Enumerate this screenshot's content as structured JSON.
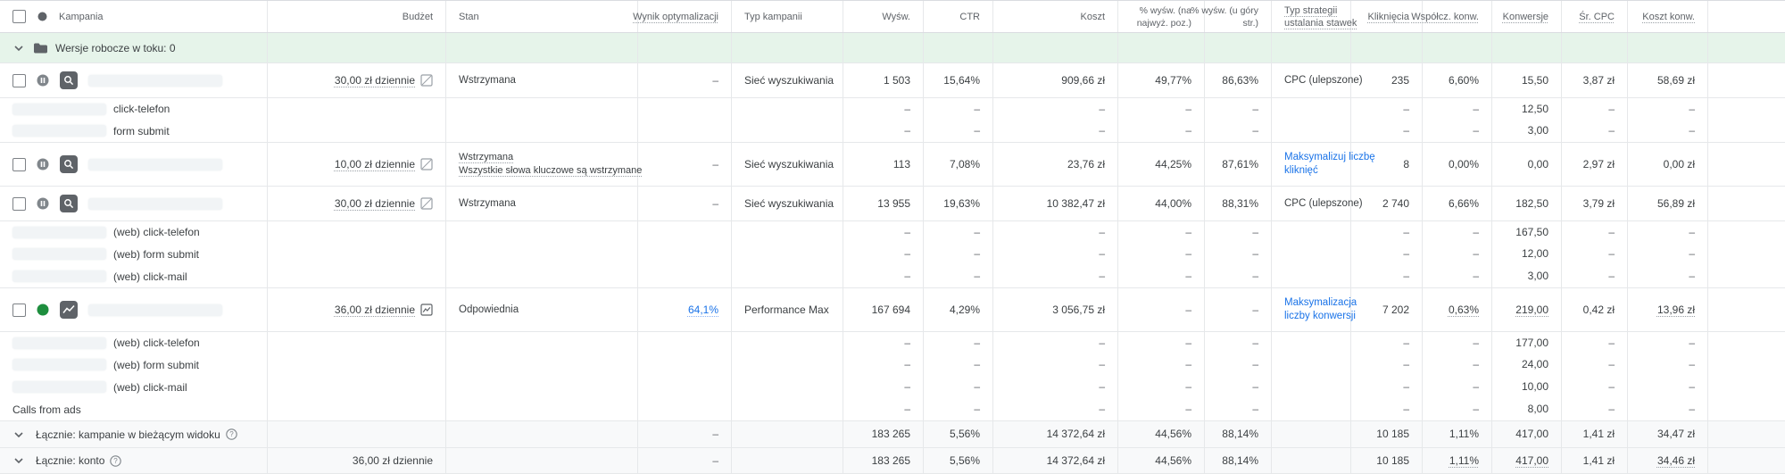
{
  "table": {
    "dash": "–",
    "columns": [
      {
        "id": "campaign",
        "label": "Kampania"
      },
      {
        "id": "budget",
        "label": "Budżet"
      },
      {
        "id": "stan",
        "label": "Stan"
      },
      {
        "id": "opt",
        "label": "Wynik optymalizacji",
        "dotted": true
      },
      {
        "id": "ctype",
        "label": "Typ kampanii"
      },
      {
        "id": "impr",
        "label": "Wyśw."
      },
      {
        "id": "ctr",
        "label": "CTR"
      },
      {
        "id": "cost",
        "label": "Koszt"
      },
      {
        "id": "top",
        "label": "% wyśw. (na\nnajwyż. poz.)"
      },
      {
        "id": "abs",
        "label": "% wyśw. (u góry\nstr.)"
      },
      {
        "id": "strat",
        "label": "Typ strategii\nustalania stawek",
        "dotted": true
      },
      {
        "id": "clicks",
        "label": "Kliknięcia",
        "dotted": true
      },
      {
        "id": "rate",
        "label": "Współcz. konw.",
        "dotted": true
      },
      {
        "id": "conv",
        "label": "Konwersje",
        "dotted": true
      },
      {
        "id": "cpc",
        "label": "Śr. CPC",
        "dotted": true
      },
      {
        "id": "costconv",
        "label": "Koszt konw.",
        "dotted": true
      }
    ],
    "rows": [
      {
        "type": "drafts",
        "label": "Wersje robocze w toku: 0"
      },
      {
        "type": "campaign",
        "status": "paused",
        "camp_icon": "search",
        "budget": "30,00 zł dziennie",
        "budget_dotted": true,
        "budget_icon": "crossed",
        "stan": "Wstrzymana",
        "opt": "–",
        "ctype": "Sieć wyszukiwania",
        "impr": "1 503",
        "ctr": "15,64%",
        "cost": "909,66 zł",
        "top": "49,77%",
        "abs": "86,63%",
        "strat": "CPC (ulepszone)",
        "clicks": "235",
        "rate": "6,60%",
        "conv": "15,50",
        "cpc": "3,87 zł",
        "costconv": "58,69 zł"
      },
      {
        "type": "conversion",
        "blur": true,
        "label": "click-telefon",
        "conv": "12,50"
      },
      {
        "type": "conversion",
        "blur": true,
        "label": "form submit",
        "conv": "3,00"
      },
      {
        "type": "campaign",
        "status": "paused",
        "camp_icon": "search",
        "budget": "10,00 zł dziennie",
        "budget_dotted": true,
        "budget_icon": "crossed",
        "stan": "Wstrzymana\nWszystkie słowa kluczowe są wstrzymane",
        "stan_dotted": true,
        "opt": "–",
        "ctype": "Sieć wyszukiwania",
        "impr": "113",
        "ctr": "7,08%",
        "cost": "23,76 zł",
        "top": "44,25%",
        "abs": "87,61%",
        "strat": "Maksymalizuj liczbę\nkliknięć",
        "strat_blue": true,
        "clicks": "8",
        "rate": "0,00%",
        "conv": "0,00",
        "cpc": "2,97 zł",
        "costconv": "0,00 zł"
      },
      {
        "type": "campaign",
        "status": "paused",
        "camp_icon": "search",
        "budget": "30,00 zł dziennie",
        "budget_dotted": true,
        "budget_icon": "crossed",
        "stan": "Wstrzymana",
        "opt": "–",
        "ctype": "Sieć wyszukiwania",
        "impr": "13 955",
        "ctr": "19,63%",
        "cost": "10 382,47 zł",
        "top": "44,00%",
        "abs": "88,31%",
        "strat": "CPC (ulepszone)",
        "clicks": "2 740",
        "rate": "6,66%",
        "conv": "182,50",
        "cpc": "3,79 zł",
        "costconv": "56,89 zł"
      },
      {
        "type": "conversion",
        "blur": true,
        "label": "(web) click-telefon",
        "conv": "167,50"
      },
      {
        "type": "conversion",
        "blur": true,
        "label": "(web) form submit",
        "conv": "12,00"
      },
      {
        "type": "conversion",
        "blur": true,
        "label": "(web) click-mail",
        "conv": "3,00"
      },
      {
        "type": "campaign",
        "status": "enabled",
        "camp_icon": "pmax",
        "budget": "36,00 zł dziennie",
        "budget_dotted": true,
        "budget_icon": "chart",
        "stan": "Odpowiednia",
        "opt": "64,1%",
        "opt_blue": true,
        "ctype": "Performance Max",
        "impr": "167 694",
        "ctr": "4,29%",
        "cost": "3 056,75 zł",
        "top": "–",
        "abs": "–",
        "strat": "Maksymalizacja\nliczby konwersji",
        "strat_blue": true,
        "clicks": "7 202",
        "rate": "0,63%",
        "conv": "219,00",
        "cpc": "0,42 zł",
        "costconv": "13,96 zł",
        "dotted": [
          "rate",
          "conv",
          "costconv"
        ]
      },
      {
        "type": "conversion",
        "blur": true,
        "label": "(web) click-telefon",
        "conv": "177,00"
      },
      {
        "type": "conversion",
        "blur": true,
        "label": "(web) form submit",
        "conv": "24,00"
      },
      {
        "type": "conversion",
        "blur": true,
        "label": "(web) click-mail",
        "conv": "10,00"
      },
      {
        "type": "conversion",
        "blur": false,
        "label": "Calls from ads",
        "conv": "8,00"
      },
      {
        "type": "total",
        "label": "Łącznie: kampanie w bieżącym widoku",
        "help": true,
        "budget": "",
        "opt": "–",
        "impr": "183 265",
        "ctr": "5,56%",
        "cost": "14 372,64 zł",
        "top": "44,56%",
        "abs": "88,14%",
        "clicks": "10 185",
        "rate": "1,11%",
        "conv": "417,00",
        "cpc": "1,41 zł",
        "costconv": "34,47 zł"
      },
      {
        "type": "total",
        "label": "Łącznie: konto",
        "help": true,
        "budget": "36,00 zł dziennie",
        "opt": "–",
        "impr": "183 265",
        "ctr": "5,56%",
        "cost": "14 372,64 zł",
        "top": "44,56%",
        "abs": "88,14%",
        "clicks": "10 185",
        "rate": "1,11%",
        "conv": "417,00",
        "cpc": "1,41 zł",
        "costconv": "34,46 zł",
        "dotted": [
          "rate",
          "conv",
          "costconv"
        ]
      }
    ]
  }
}
